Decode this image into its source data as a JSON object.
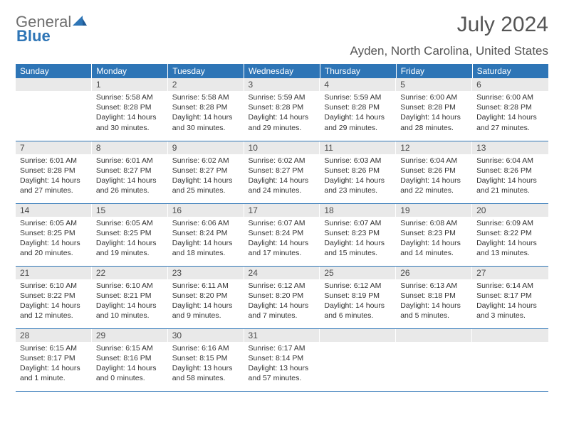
{
  "logo": {
    "text1": "General",
    "text2": "Blue",
    "color1": "#6f6f6f",
    "color2": "#2e75b6"
  },
  "title": "July 2024",
  "location": "Ayden, North Carolina, United States",
  "headers": [
    "Sunday",
    "Monday",
    "Tuesday",
    "Wednesday",
    "Thursday",
    "Friday",
    "Saturday"
  ],
  "header_bg": "#2e75b6",
  "daynum_bg": "#e9e9e9",
  "weeks": [
    [
      null,
      {
        "n": "1",
        "sunrise": "5:58 AM",
        "sunset": "8:28 PM",
        "daylight": "14 hours and 30 minutes."
      },
      {
        "n": "2",
        "sunrise": "5:58 AM",
        "sunset": "8:28 PM",
        "daylight": "14 hours and 30 minutes."
      },
      {
        "n": "3",
        "sunrise": "5:59 AM",
        "sunset": "8:28 PM",
        "daylight": "14 hours and 29 minutes."
      },
      {
        "n": "4",
        "sunrise": "5:59 AM",
        "sunset": "8:28 PM",
        "daylight": "14 hours and 29 minutes."
      },
      {
        "n": "5",
        "sunrise": "6:00 AM",
        "sunset": "8:28 PM",
        "daylight": "14 hours and 28 minutes."
      },
      {
        "n": "6",
        "sunrise": "6:00 AM",
        "sunset": "8:28 PM",
        "daylight": "14 hours and 27 minutes."
      }
    ],
    [
      {
        "n": "7",
        "sunrise": "6:01 AM",
        "sunset": "8:28 PM",
        "daylight": "14 hours and 27 minutes."
      },
      {
        "n": "8",
        "sunrise": "6:01 AM",
        "sunset": "8:27 PM",
        "daylight": "14 hours and 26 minutes."
      },
      {
        "n": "9",
        "sunrise": "6:02 AM",
        "sunset": "8:27 PM",
        "daylight": "14 hours and 25 minutes."
      },
      {
        "n": "10",
        "sunrise": "6:02 AM",
        "sunset": "8:27 PM",
        "daylight": "14 hours and 24 minutes."
      },
      {
        "n": "11",
        "sunrise": "6:03 AM",
        "sunset": "8:26 PM",
        "daylight": "14 hours and 23 minutes."
      },
      {
        "n": "12",
        "sunrise": "6:04 AM",
        "sunset": "8:26 PM",
        "daylight": "14 hours and 22 minutes."
      },
      {
        "n": "13",
        "sunrise": "6:04 AM",
        "sunset": "8:26 PM",
        "daylight": "14 hours and 21 minutes."
      }
    ],
    [
      {
        "n": "14",
        "sunrise": "6:05 AM",
        "sunset": "8:25 PM",
        "daylight": "14 hours and 20 minutes."
      },
      {
        "n": "15",
        "sunrise": "6:05 AM",
        "sunset": "8:25 PM",
        "daylight": "14 hours and 19 minutes."
      },
      {
        "n": "16",
        "sunrise": "6:06 AM",
        "sunset": "8:24 PM",
        "daylight": "14 hours and 18 minutes."
      },
      {
        "n": "17",
        "sunrise": "6:07 AM",
        "sunset": "8:24 PM",
        "daylight": "14 hours and 17 minutes."
      },
      {
        "n": "18",
        "sunrise": "6:07 AM",
        "sunset": "8:23 PM",
        "daylight": "14 hours and 15 minutes."
      },
      {
        "n": "19",
        "sunrise": "6:08 AM",
        "sunset": "8:23 PM",
        "daylight": "14 hours and 14 minutes."
      },
      {
        "n": "20",
        "sunrise": "6:09 AM",
        "sunset": "8:22 PM",
        "daylight": "14 hours and 13 minutes."
      }
    ],
    [
      {
        "n": "21",
        "sunrise": "6:10 AM",
        "sunset": "8:22 PM",
        "daylight": "14 hours and 12 minutes."
      },
      {
        "n": "22",
        "sunrise": "6:10 AM",
        "sunset": "8:21 PM",
        "daylight": "14 hours and 10 minutes."
      },
      {
        "n": "23",
        "sunrise": "6:11 AM",
        "sunset": "8:20 PM",
        "daylight": "14 hours and 9 minutes."
      },
      {
        "n": "24",
        "sunrise": "6:12 AM",
        "sunset": "8:20 PM",
        "daylight": "14 hours and 7 minutes."
      },
      {
        "n": "25",
        "sunrise": "6:12 AM",
        "sunset": "8:19 PM",
        "daylight": "14 hours and 6 minutes."
      },
      {
        "n": "26",
        "sunrise": "6:13 AM",
        "sunset": "8:18 PM",
        "daylight": "14 hours and 5 minutes."
      },
      {
        "n": "27",
        "sunrise": "6:14 AM",
        "sunset": "8:17 PM",
        "daylight": "14 hours and 3 minutes."
      }
    ],
    [
      {
        "n": "28",
        "sunrise": "6:15 AM",
        "sunset": "8:17 PM",
        "daylight": "14 hours and 1 minute."
      },
      {
        "n": "29",
        "sunrise": "6:15 AM",
        "sunset": "8:16 PM",
        "daylight": "14 hours and 0 minutes."
      },
      {
        "n": "30",
        "sunrise": "6:16 AM",
        "sunset": "8:15 PM",
        "daylight": "13 hours and 58 minutes."
      },
      {
        "n": "31",
        "sunrise": "6:17 AM",
        "sunset": "8:14 PM",
        "daylight": "13 hours and 57 minutes."
      },
      null,
      null,
      null
    ]
  ],
  "labels": {
    "sunrise": "Sunrise: ",
    "sunset": "Sunset: ",
    "daylight": "Daylight: "
  }
}
